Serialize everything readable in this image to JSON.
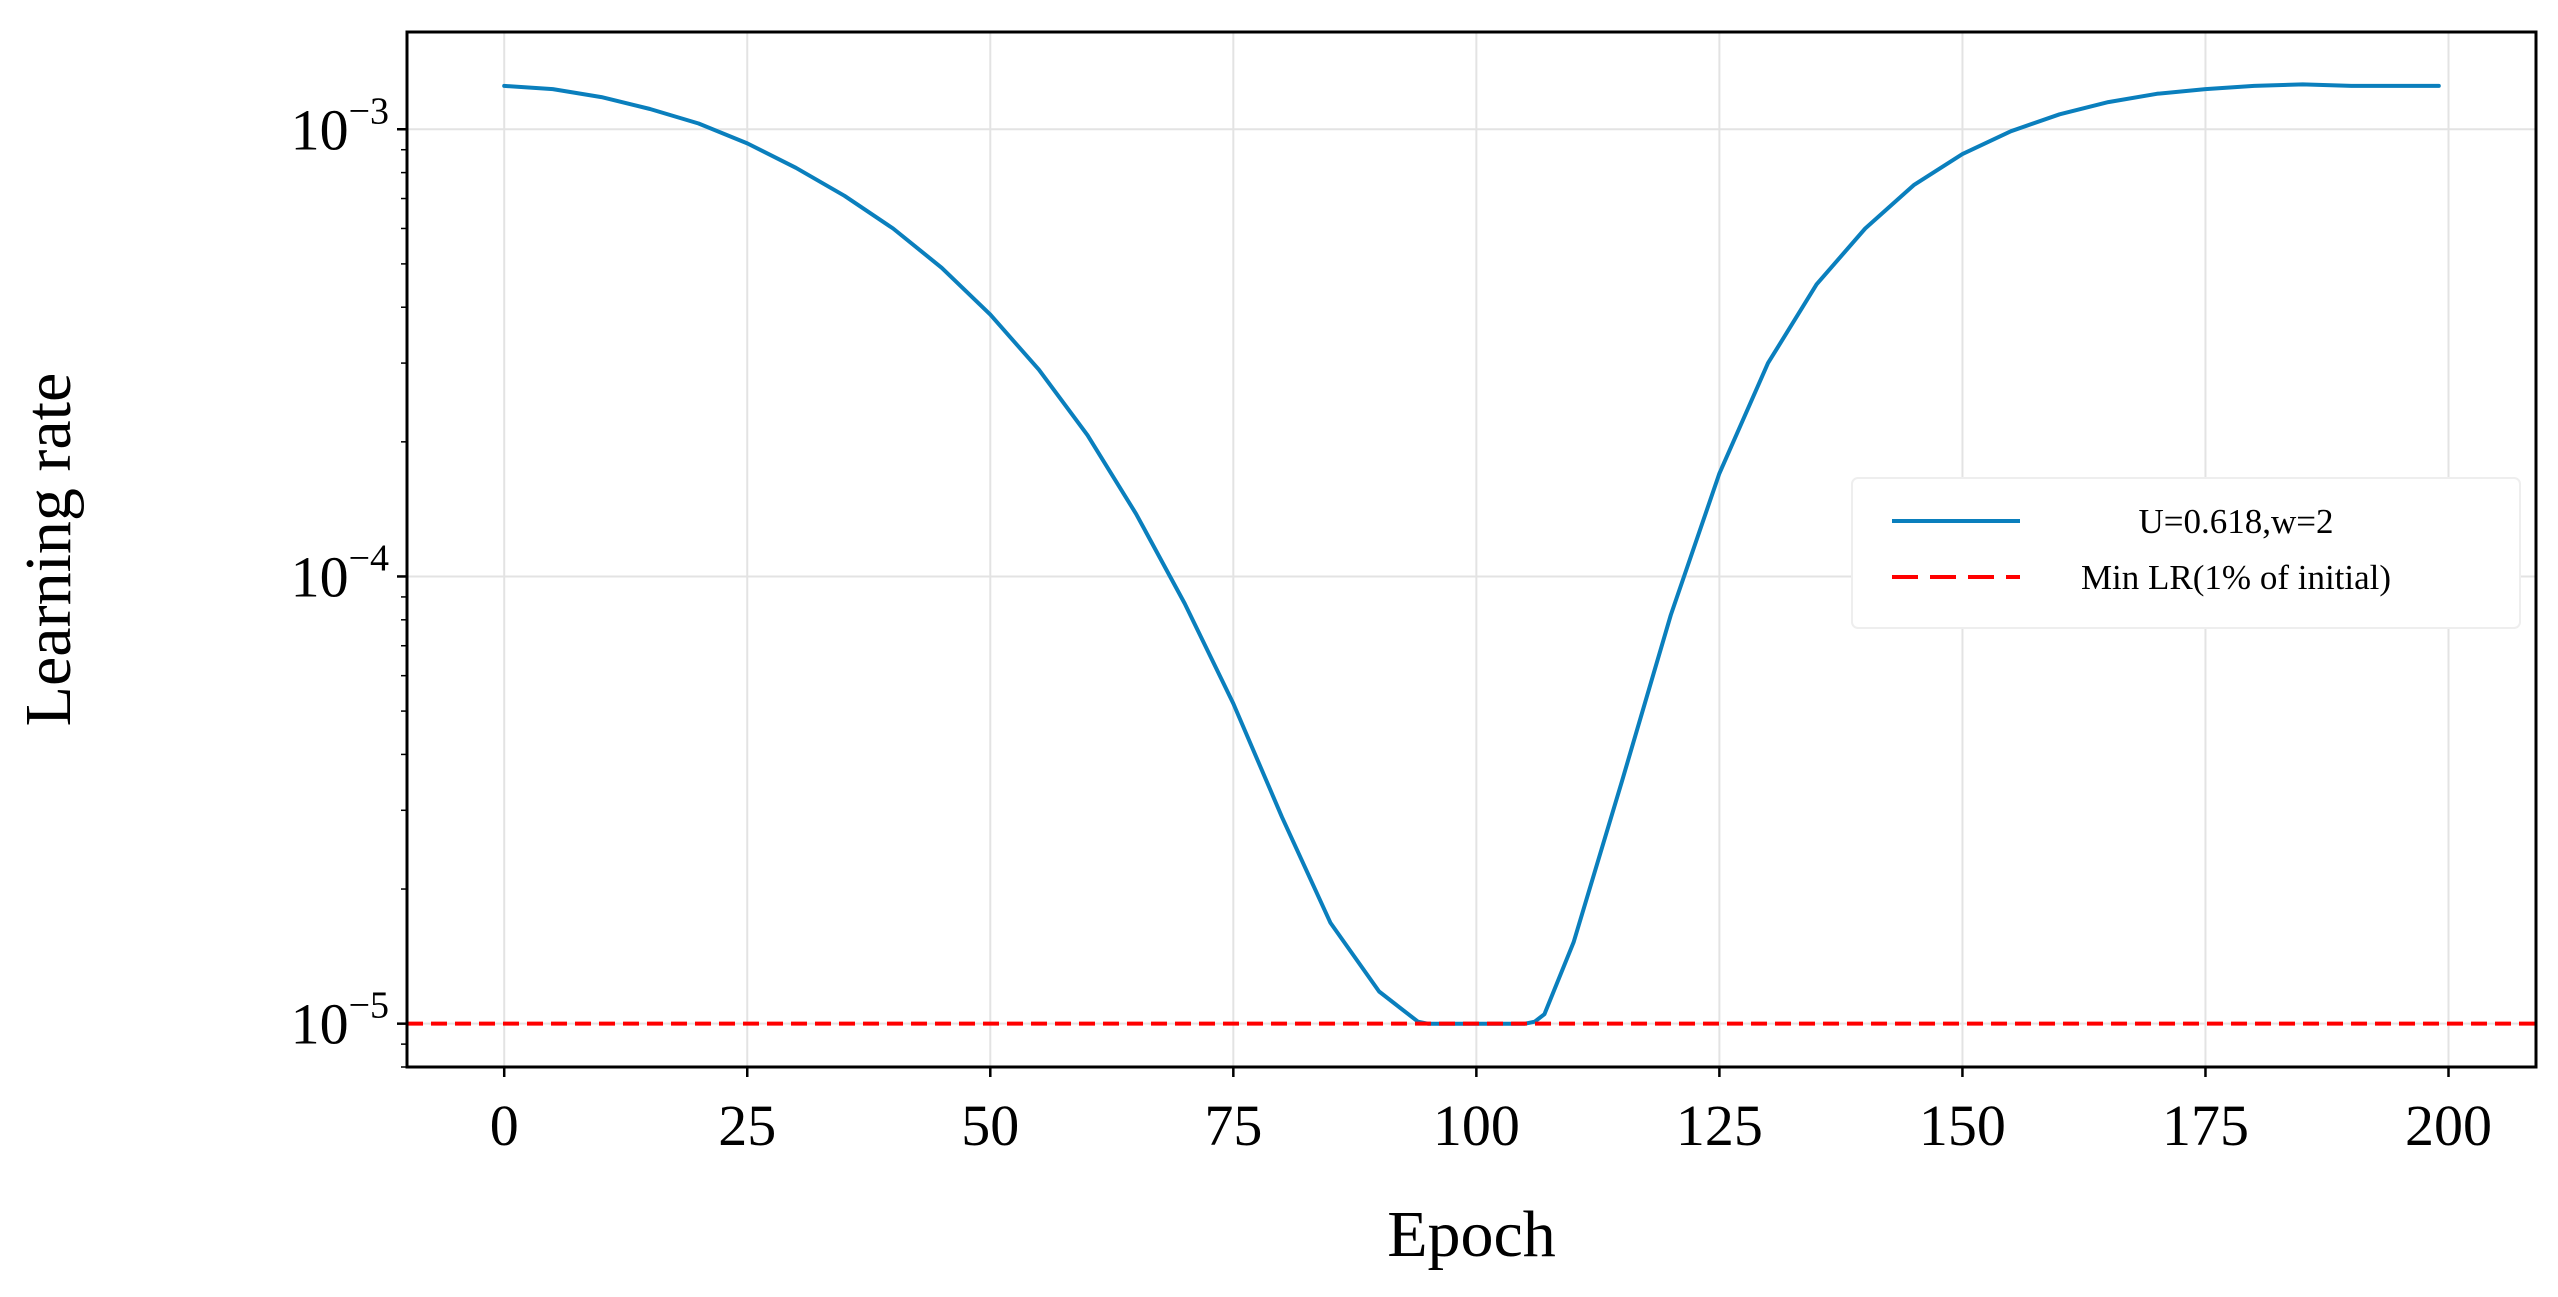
{
  "chart_data": {
    "type": "line",
    "title": "",
    "xlabel": "Epoch",
    "ylabel": "Learning rate",
    "yscale": "log",
    "xlim": [
      -10,
      209
    ],
    "ylim": [
      8e-06,
      0.00165
    ],
    "xticks": [
      0,
      25,
      50,
      75,
      100,
      125,
      150,
      175,
      200
    ],
    "xtick_labels": [
      "0",
      "25",
      "50",
      "75",
      "100",
      "125",
      "150",
      "175",
      "200"
    ],
    "yticks": [
      1e-05,
      0.0001,
      0.001
    ],
    "ytick_labels": [
      {
        "base": "10",
        "exp": "−5"
      },
      {
        "base": "10",
        "exp": "−4"
      },
      {
        "base": "10",
        "exp": "−3"
      }
    ],
    "grid": true,
    "legend_position": "center-right",
    "series": [
      {
        "name": "U=0.618,w=2",
        "color": "#0a7fbd",
        "style": "solid",
        "x": [
          0,
          5,
          10,
          15,
          20,
          25,
          30,
          35,
          40,
          45,
          50,
          55,
          60,
          65,
          70,
          75,
          80,
          85,
          90,
          93,
          94,
          95,
          100,
          105,
          106,
          107,
          110,
          115,
          120,
          125,
          130,
          135,
          140,
          145,
          150,
          155,
          160,
          165,
          170,
          175,
          180,
          185,
          190,
          195,
          199
        ],
        "y": [
          0.00125,
          0.00123,
          0.00118,
          0.00111,
          0.00103,
          0.00093,
          0.00082,
          0.00071,
          0.0006,
          0.00049,
          0.000385,
          0.00029,
          0.000207,
          0.000138,
          8.7e-05,
          5.2e-05,
          2.9e-05,
          1.68e-05,
          1.18e-05,
          1.05e-05,
          1.01e-05,
          1e-05,
          1e-05,
          1e-05,
          1.01e-05,
          1.05e-05,
          1.52e-05,
          3.5e-05,
          8.2e-05,
          0.00017,
          0.0003,
          0.00045,
          0.0006,
          0.00075,
          0.00088,
          0.00099,
          0.00108,
          0.00115,
          0.0012,
          0.00123,
          0.00125,
          0.00126,
          0.00125,
          0.00125,
          0.00125
        ]
      },
      {
        "name": "Min LR(1% of initial)",
        "color": "#ff0000",
        "style": "dashed",
        "constant": 1e-05
      }
    ]
  }
}
